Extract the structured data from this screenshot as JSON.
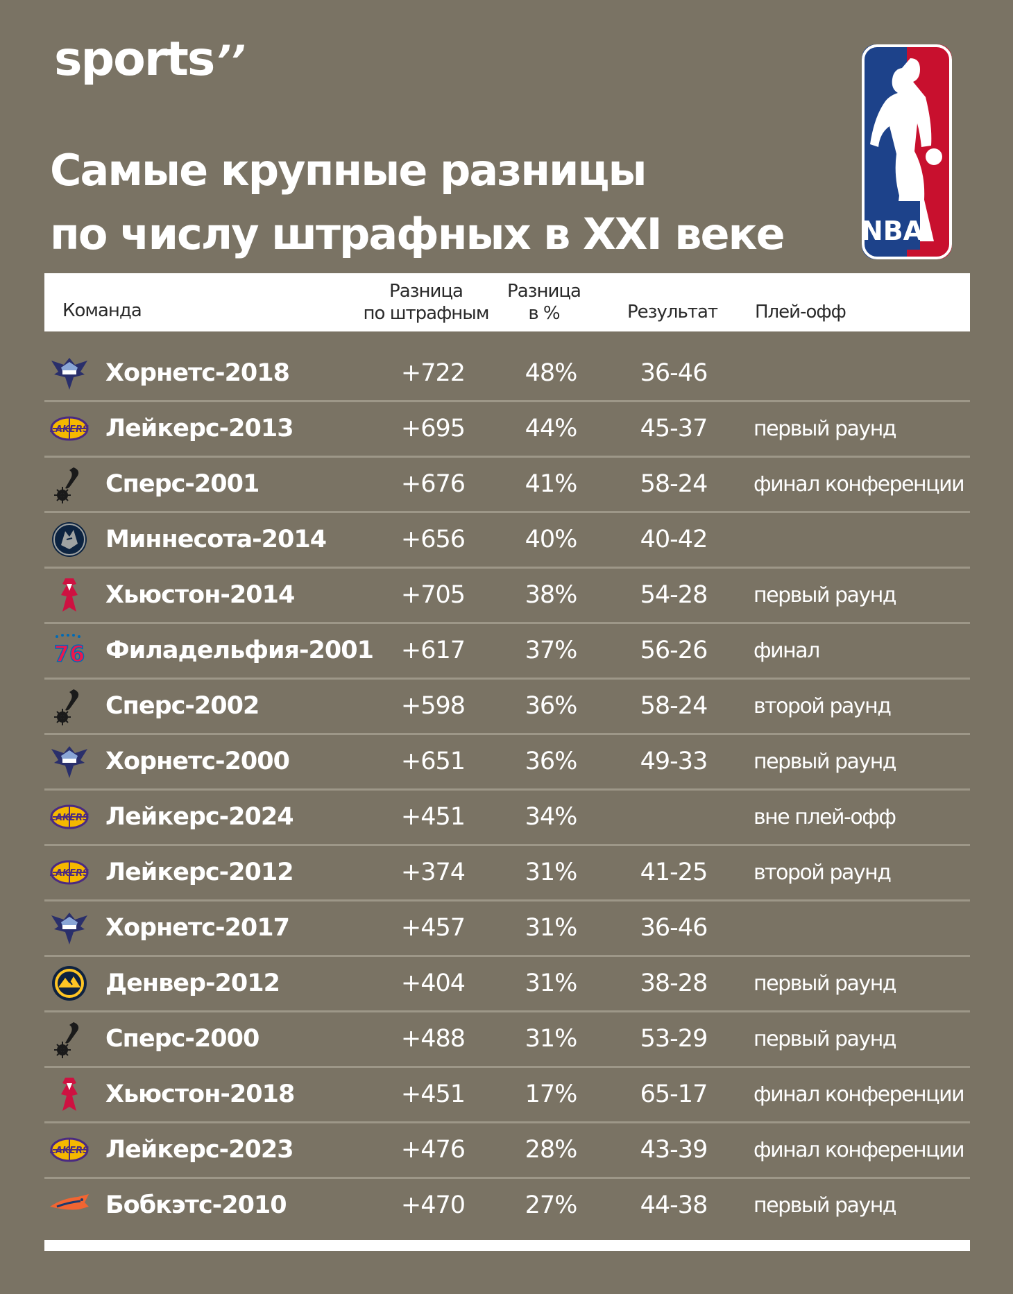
{
  "brand": {
    "name": "sports",
    "mark": "’’"
  },
  "logo": {
    "text": "NBA",
    "colors": {
      "blue": "#1d428a",
      "red": "#c8102e"
    }
  },
  "title": {
    "line1": "Самые крупные разницы",
    "line2": "по числу штрафных в XXI веке"
  },
  "table": {
    "headers": {
      "team": "Команда",
      "diff_line1": "Разница",
      "diff_line2": "по штрафным",
      "pct_line1": "Разница",
      "pct_line2": "в %",
      "result": "Результат",
      "playoff": "Плей-офф"
    },
    "rows": [
      {
        "icon": "hornets-logo-icon",
        "team": "Хорнетс-2018",
        "diff": "+722",
        "pct": "48%",
        "result": "36-46",
        "playoff": ""
      },
      {
        "icon": "lakers-logo-icon",
        "team": "Лейкерс-2013",
        "diff": "+695",
        "pct": "44%",
        "result": "45-37",
        "playoff": "первый раунд"
      },
      {
        "icon": "spurs-logo-icon",
        "team": "Сперс-2001",
        "diff": "+676",
        "pct": "41%",
        "result": "58-24",
        "playoff": "финал конференции"
      },
      {
        "icon": "timberwolves-logo-icon",
        "team": "Миннесота-2014",
        "diff": "+656",
        "pct": "40%",
        "result": "40-42",
        "playoff": ""
      },
      {
        "icon": "rockets-logo-icon",
        "team": "Хьюстон-2014",
        "diff": "+705",
        "pct": "38%",
        "result": "54-28",
        "playoff": "первый раунд"
      },
      {
        "icon": "sixers-logo-icon",
        "team": "Филадельфия-2001",
        "diff": "+617",
        "pct": "37%",
        "result": "56-26",
        "playoff": "финал"
      },
      {
        "icon": "spurs-logo-icon",
        "team": "Сперс-2002",
        "diff": "+598",
        "pct": "36%",
        "result": "58-24",
        "playoff": "второй раунд"
      },
      {
        "icon": "hornets-logo-icon",
        "team": "Хорнетс-2000",
        "diff": "+651",
        "pct": "36%",
        "result": "49-33",
        "playoff": "первый раунд"
      },
      {
        "icon": "lakers-logo-icon",
        "team": "Лейкерс-2024",
        "diff": "+451",
        "pct": "34%",
        "result": "",
        "playoff": "вне плей-офф"
      },
      {
        "icon": "lakers-logo-icon",
        "team": "Лейкерс-2012",
        "diff": "+374",
        "pct": "31%",
        "result": "41-25",
        "playoff": "второй раунд"
      },
      {
        "icon": "hornets-logo-icon",
        "team": "Хорнетс-2017",
        "diff": "+457",
        "pct": "31%",
        "result": "36-46",
        "playoff": ""
      },
      {
        "icon": "nuggets-logo-icon",
        "team": "Денвер-2012",
        "diff": "+404",
        "pct": "31%",
        "result": "38-28",
        "playoff": "первый раунд"
      },
      {
        "icon": "spurs-logo-icon",
        "team": "Сперс-2000",
        "diff": "+488",
        "pct": "31%",
        "result": "53-29",
        "playoff": "первый раунд"
      },
      {
        "icon": "rockets-logo-icon",
        "team": "Хьюстон-2018",
        "diff": "+451",
        "pct": "17%",
        "result": "65-17",
        "playoff": "финал конференции"
      },
      {
        "icon": "lakers-logo-icon",
        "team": "Лейкерс-2023",
        "diff": "+476",
        "pct": "28%",
        "result": "43-39",
        "playoff": "финал конференции"
      },
      {
        "icon": "bobcats-logo-icon",
        "team": "Бобкэтс-2010",
        "diff": "+470",
        "pct": "27%",
        "result": "44-38",
        "playoff": "первый раунд"
      }
    ]
  }
}
